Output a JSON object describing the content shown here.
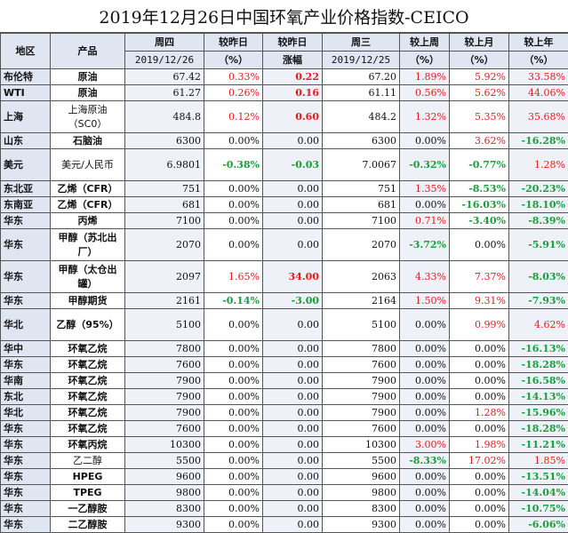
{
  "title": "2019年12月26日中国环氧产业价格指数-CEICO",
  "header": {
    "region": "地区",
    "product": "产品",
    "thursday": "周四",
    "thursday_date": "2019/12/26",
    "vs_prev_day": "较昨日",
    "vs_prev_day_unit": "（%）",
    "vs_prev_day2": "较昨日",
    "change": "涨幅",
    "wednesday": "周三",
    "wednesday_date": "2019/12/25",
    "vs_last_week": "较上周",
    "vs_last_week_unit": "（%）",
    "vs_last_month": "较上月",
    "vs_last_month_unit": "（%）",
    "vs_last_year": "较上年",
    "vs_last_year_unit": "（%）"
  },
  "rows": [
    {
      "region": "布伦特",
      "product": "原油",
      "thu": "67.42",
      "pct_day": "0.33%",
      "chg": "0.22",
      "wed": "67.20",
      "week": "1.89%",
      "month": "5.92%",
      "year": "33.58%"
    },
    {
      "region": "WTI",
      "product": "原油",
      "thu": "61.27",
      "pct_day": "0.26%",
      "chg": "0.16",
      "wed": "61.11",
      "week": "0.56%",
      "month": "5.62%",
      "year": "44.06%"
    },
    {
      "region": "上海",
      "product": "上海原油（SC0）",
      "thu": "484.8",
      "pct_day": "0.12%",
      "chg": "0.60",
      "wed": "484.2",
      "week": "1.32%",
      "month": "5.35%",
      "year": "35.68%"
    },
    {
      "region": "山东",
      "product": "石脑油",
      "thu": "6300",
      "pct_day": "0.00%",
      "chg": "0.00",
      "wed": "6300",
      "week": "0.00%",
      "month": "3.62%",
      "year": "-16.28%"
    },
    {
      "region": "美元",
      "product": "美元/人民币",
      "thu": "6.9801",
      "pct_day": "-0.38%",
      "chg": "-0.03",
      "wed": "7.0067",
      "week": "-0.32%",
      "month": "-0.77%",
      "year": "1.28%"
    },
    {
      "region": "东北亚",
      "product": "乙烯（CFR）",
      "thu": "751",
      "pct_day": "0.00%",
      "chg": "0.00",
      "wed": "751",
      "week": "1.35%",
      "month": "-8.53%",
      "year": "-20.23%"
    },
    {
      "region": "东南亚",
      "product": "乙烯（CFR）",
      "thu": "681",
      "pct_day": "0.00%",
      "chg": "0.00",
      "wed": "681",
      "week": "0.00%",
      "month": "-16.03%",
      "year": "-18.10%"
    },
    {
      "region": "华东",
      "product": "丙烯",
      "thu": "7100",
      "pct_day": "0.00%",
      "chg": "0.00",
      "wed": "7100",
      "week": "0.71%",
      "month": "-3.40%",
      "year": "-8.39%"
    },
    {
      "region": "华东",
      "product": "甲醇（苏北出厂）",
      "thu": "2070",
      "pct_day": "0.00%",
      "chg": "0.00",
      "wed": "2070",
      "week": "-3.72%",
      "month": "0.00%",
      "year": "-5.91%"
    },
    {
      "region": "华东",
      "product": "甲醇（太仓出罐）",
      "thu": "2097",
      "pct_day": "1.65%",
      "chg": "34.00",
      "wed": "2063",
      "week": "4.33%",
      "month": "7.37%",
      "year": "-8.03%"
    },
    {
      "region": "华东",
      "product": "甲醇期货",
      "thu": "2161",
      "pct_day": "-0.14%",
      "chg": "-3.00",
      "wed": "2164",
      "week": "1.50%",
      "month": "9.31%",
      "year": "-7.93%"
    },
    {
      "region": "华北",
      "product": "乙醇（95%）",
      "thu": "5100",
      "pct_day": "0.00%",
      "chg": "0.00",
      "wed": "5100",
      "week": "0.00%",
      "month": "0.99%",
      "year": "4.62%"
    },
    {
      "region": "华中",
      "product": "环氧乙烷",
      "thu": "7800",
      "pct_day": "0.00%",
      "chg": "0.00",
      "wed": "7800",
      "week": "0.00%",
      "month": "0.00%",
      "year": "-16.13%"
    },
    {
      "region": "华东",
      "product": "环氧乙烷",
      "thu": "7600",
      "pct_day": "0.00%",
      "chg": "0.00",
      "wed": "7600",
      "week": "0.00%",
      "month": "0.00%",
      "year": "-18.28%"
    },
    {
      "region": "华南",
      "product": "环氧乙烷",
      "thu": "7900",
      "pct_day": "0.00%",
      "chg": "0.00",
      "wed": "7900",
      "week": "0.00%",
      "month": "0.00%",
      "year": "-16.58%"
    },
    {
      "region": "东北",
      "product": "环氧乙烷",
      "thu": "7900",
      "pct_day": "0.00%",
      "chg": "0.00",
      "wed": "7900",
      "week": "0.00%",
      "month": "0.00%",
      "year": "-14.13%"
    },
    {
      "region": "华北",
      "product": "环氧乙烷",
      "thu": "7900",
      "pct_day": "0.00%",
      "chg": "0.00",
      "wed": "7900",
      "week": "0.00%",
      "month": "1.28%",
      "year": "-15.96%"
    },
    {
      "region": "华东",
      "product": "环氧乙烷",
      "thu": "7600",
      "pct_day": "0.00%",
      "chg": "0.00",
      "wed": "7600",
      "week": "0.00%",
      "month": "0.00%",
      "year": "-18.28%"
    },
    {
      "region": "华东",
      "product": "环氧丙烷",
      "thu": "10300",
      "pct_day": "0.00%",
      "chg": "0.00",
      "wed": "10300",
      "week": "3.00%",
      "month": "1.98%",
      "year": "-11.21%"
    },
    {
      "region": "华东",
      "product": "乙二醇",
      "thu": "5500",
      "pct_day": "0.00%",
      "chg": "0.00",
      "wed": "5500",
      "week": "-8.33%",
      "month": "17.02%",
      "year": "1.85%"
    },
    {
      "region": "华东",
      "product": "HPEG",
      "thu": "9600",
      "pct_day": "0.00%",
      "chg": "0.00",
      "wed": "9600",
      "week": "0.00%",
      "month": "0.00%",
      "year": "-13.51%"
    },
    {
      "region": "华东",
      "product": "TPEG",
      "thu": "9800",
      "pct_day": "0.00%",
      "chg": "0.00",
      "wed": "9800",
      "week": "0.00%",
      "month": "0.00%",
      "year": "-14.04%"
    },
    {
      "region": "华东",
      "product": "一乙醇胺",
      "thu": "8300",
      "pct_day": "0.00%",
      "chg": "0.00",
      "wed": "8300",
      "week": "0.00%",
      "month": "0.00%",
      "year": "-10.75%"
    },
    {
      "region": "华东",
      "product": "二乙醇胺",
      "thu": "9300",
      "pct_day": "0.00%",
      "chg": "0.00",
      "wed": "9300",
      "week": "0.00%",
      "month": "0.00%",
      "year": "-6.06%"
    }
  ],
  "colors": {
    "positive": "#e51c1c",
    "negative": "#1a9e3c",
    "header_bg": "#dfe5f1"
  }
}
